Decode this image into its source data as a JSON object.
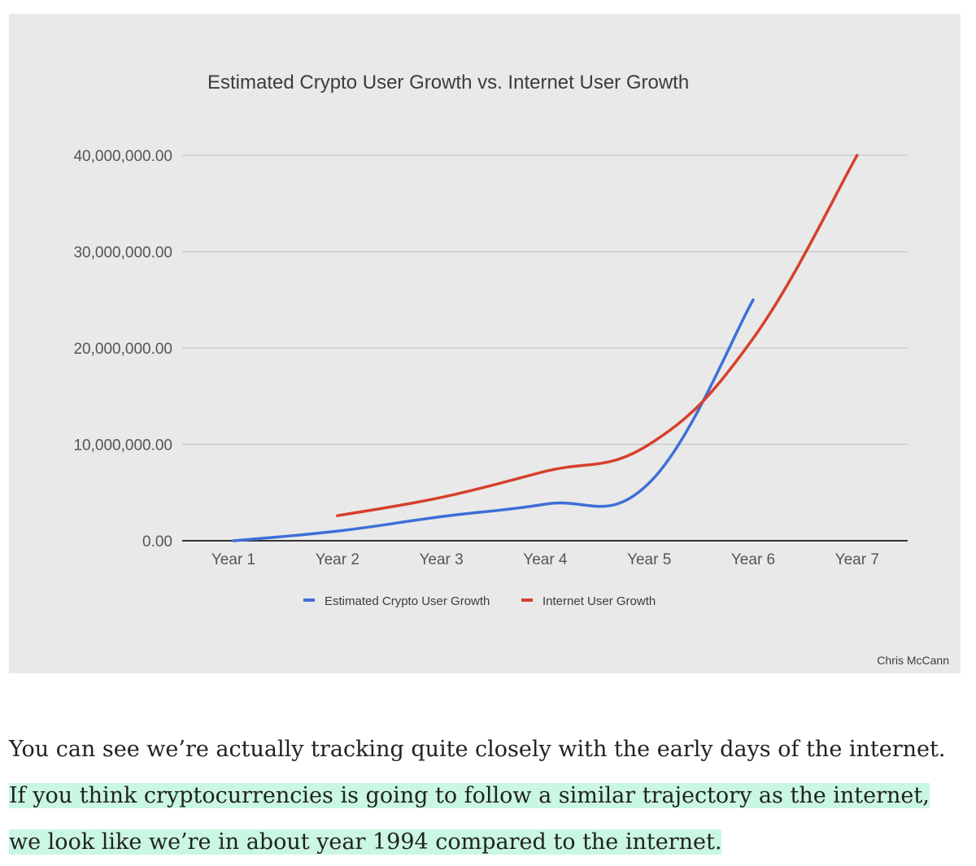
{
  "chart_data": {
    "type": "line",
    "title": "Estimated Crypto User Growth vs. Internet User Growth",
    "categories": [
      "Year 1",
      "Year 2",
      "Year 3",
      "Year 4",
      "Year 5",
      "Year 6",
      "Year 7"
    ],
    "y_ticks": [
      "0.00",
      "10,000,000.00",
      "20,000,000.00",
      "30,000,000.00",
      "40,000,000.00"
    ],
    "ylim": [
      0,
      40000000
    ],
    "grid": true,
    "legend_position": "bottom",
    "series": [
      {
        "name": "Estimated Crypto User Growth",
        "color": "#3e6fd8",
        "values": [
          0,
          1000000,
          2500000,
          3800000,
          6000000,
          25000000,
          null
        ]
      },
      {
        "name": "Internet User Growth",
        "color": "#d6402c",
        "values": [
          null,
          2600000,
          4500000,
          7200000,
          10000000,
          21000000,
          40000000
        ]
      }
    ],
    "credit": "Chris McCann"
  },
  "caption": {
    "plain": "You can see we’re actually tracking quite closely with the early days of the internet. ",
    "highlighted": "If you think cryptocurrencies is going to follow a similar trajectory as the internet, we look like we’re in about year 1994 compared to the internet."
  }
}
